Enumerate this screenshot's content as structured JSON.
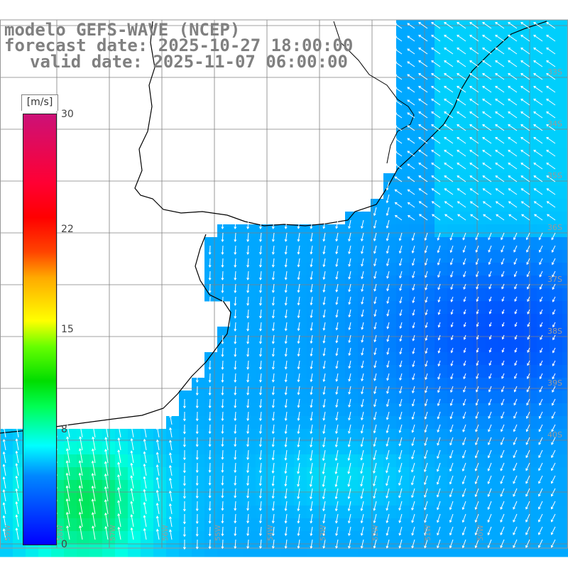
{
  "title": {
    "model": "modelo GEFS-WAVE (NCEP)",
    "forecast_date": "forecast date: 2025-10-27 18:00:00",
    "valid_date": "valid date: 2025-11-07 06:00:00"
  },
  "colorbar": {
    "unit": "[m/s]",
    "ticks": [
      {
        "label": "30",
        "value": 30
      },
      {
        "label": "22",
        "value": 22
      },
      {
        "label": "15",
        "value": 15
      },
      {
        "label": "8",
        "value": 8
      },
      {
        "label": "0",
        "value": 0
      }
    ],
    "colors": {
      "low": "#0000ff",
      "mid": "#00ffff",
      "green": "#00dd00",
      "yellow": "#ffff00",
      "red": "#ff0000",
      "high": "#cc1177"
    }
  },
  "lat_labels": [
    "33S",
    "34S",
    "35S",
    "36S",
    "37S",
    "38S",
    "39S",
    "40S"
  ],
  "lon_labels": [
    "59W",
    "58W",
    "57W",
    "56W",
    "55W",
    "54W",
    "53W",
    "52W",
    "51W",
    "50W"
  ],
  "map": {
    "land_color": "#ffffff",
    "grid_color": "#808080",
    "arrow_color": "#ffffff"
  }
}
